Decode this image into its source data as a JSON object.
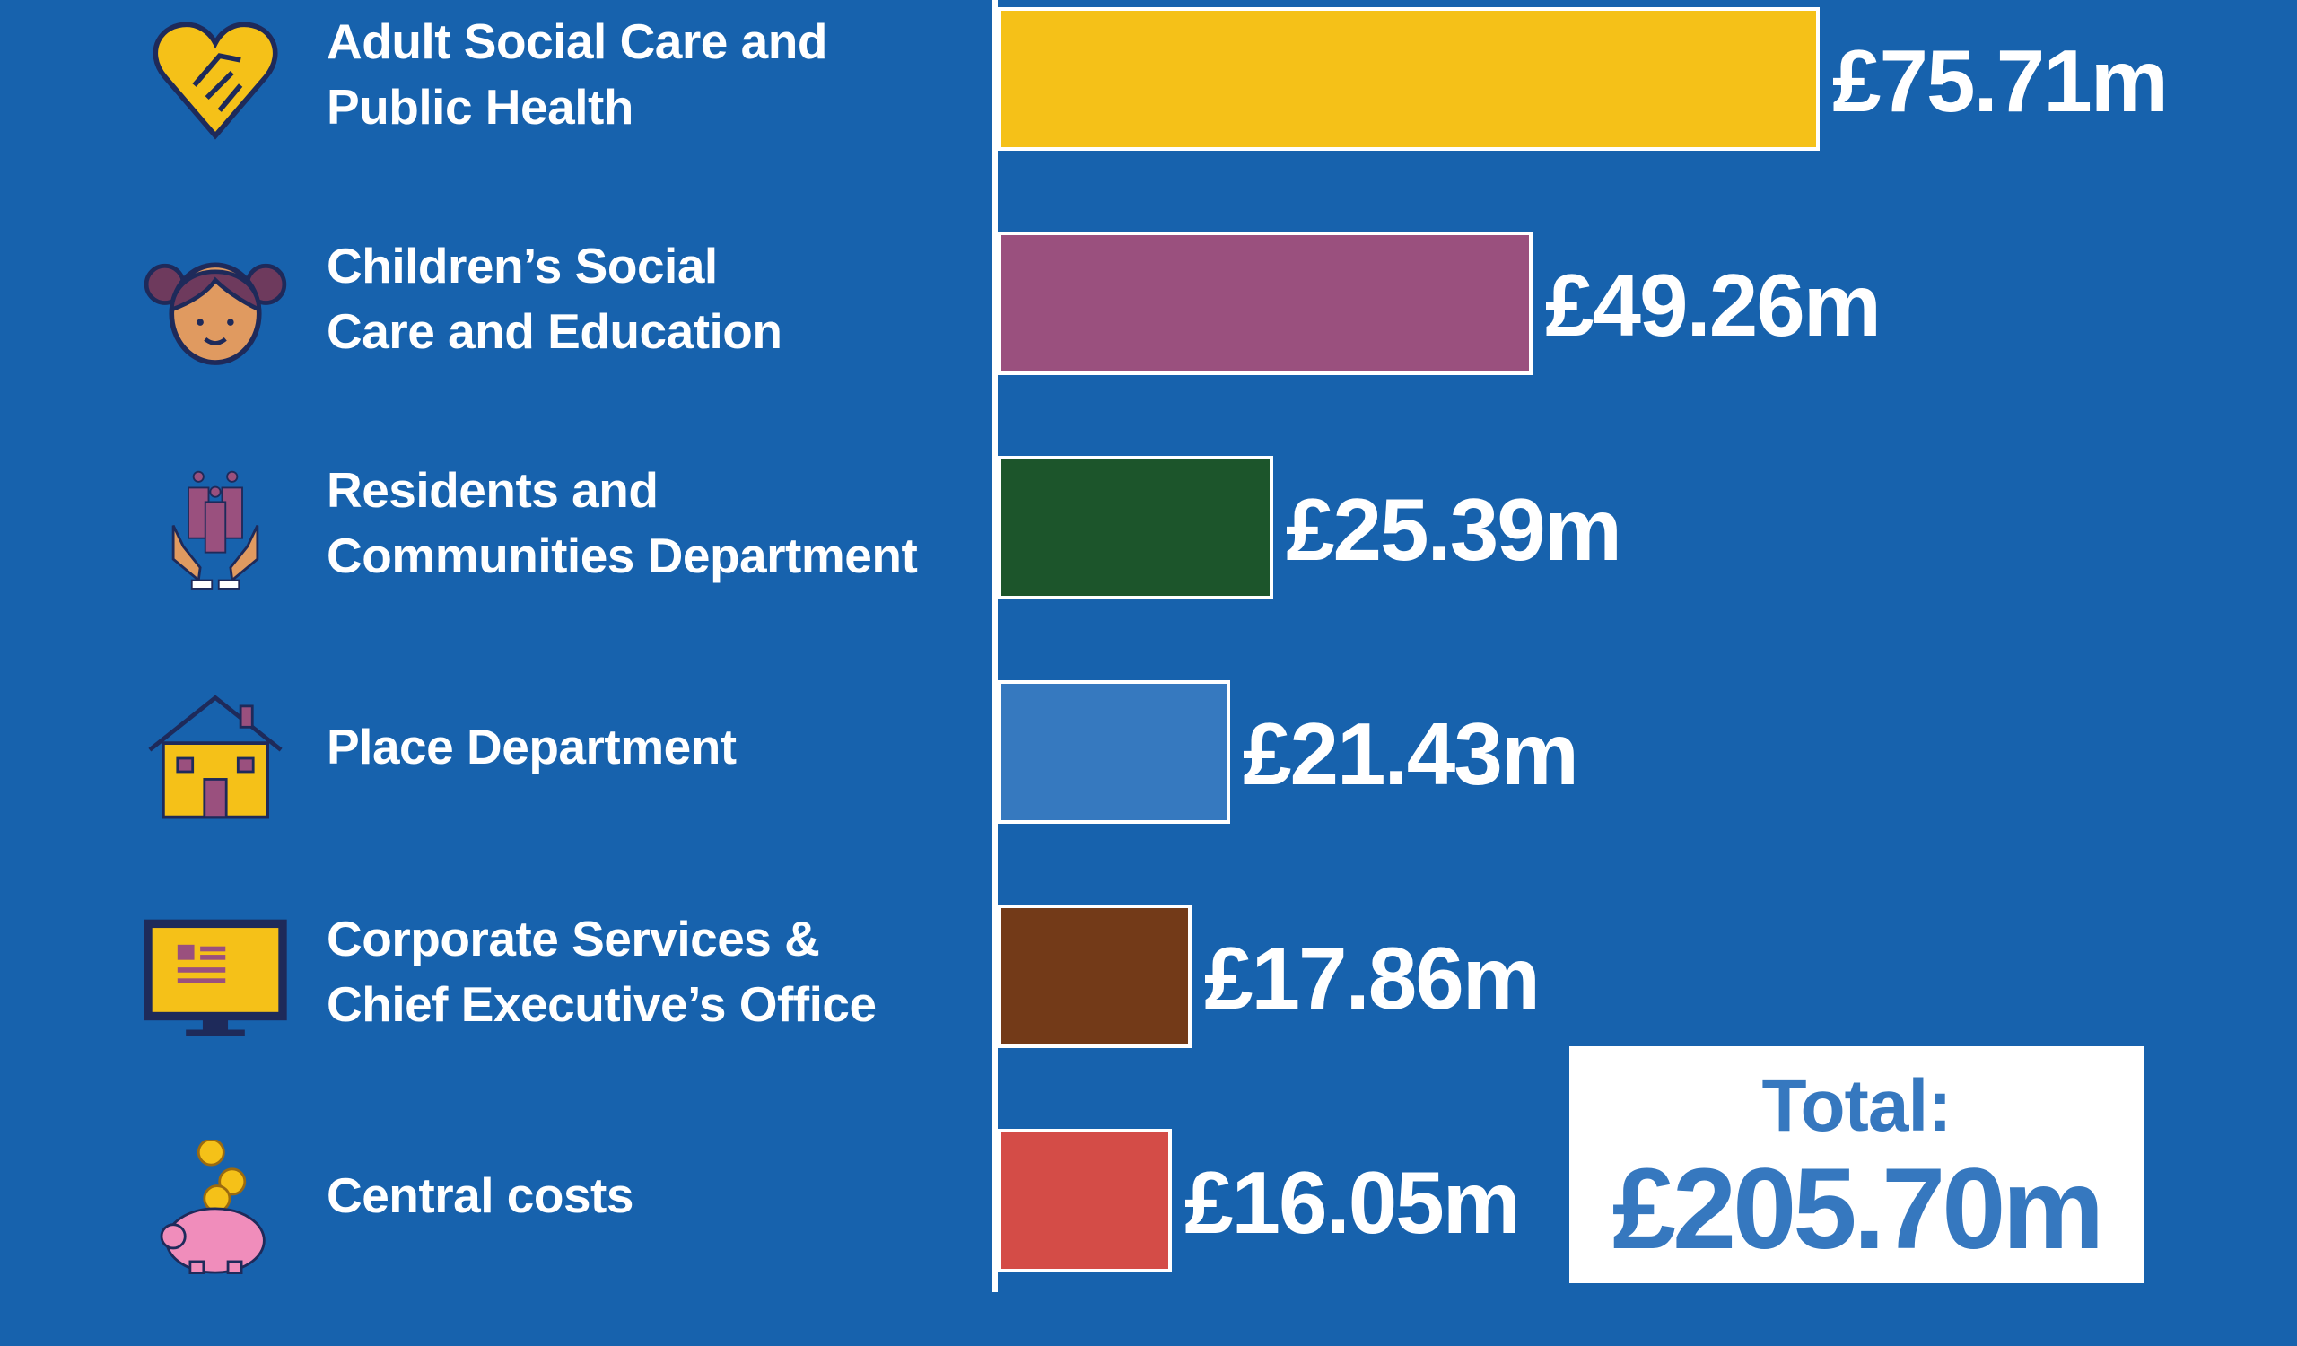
{
  "chart_data": {
    "type": "bar",
    "orientation": "horizontal",
    "categories": [
      [
        "Adult Social Care and",
        "Public Health"
      ],
      [
        "Children’s Social",
        "Care and Education"
      ],
      [
        "Residents and",
        "Communities Department"
      ],
      [
        "Place Department"
      ],
      [
        "Corporate Services &",
        "Chief Executive’s Office"
      ],
      [
        "Central costs"
      ]
    ],
    "values": [
      75.71,
      49.26,
      25.39,
      21.43,
      17.86,
      16.05
    ],
    "value_labels": [
      "£75.71m",
      "£49.26m",
      "£25.39m",
      "£21.43m",
      "£17.86m",
      "£16.05m"
    ],
    "colors": [
      "#f5c118",
      "#9a507e",
      "#1c552b",
      "#3679bf",
      "#733a18",
      "#d44c47"
    ],
    "icons": [
      "heart-handshake-icon",
      "girl-face-icon",
      "hands-people-icon",
      "house-icon",
      "computer-monitor-icon",
      "piggy-bank-coins-icon"
    ],
    "unit": "£m",
    "grid": false,
    "background": "#1762ad"
  },
  "total": {
    "label": "Total:",
    "value": "£205.70m"
  }
}
